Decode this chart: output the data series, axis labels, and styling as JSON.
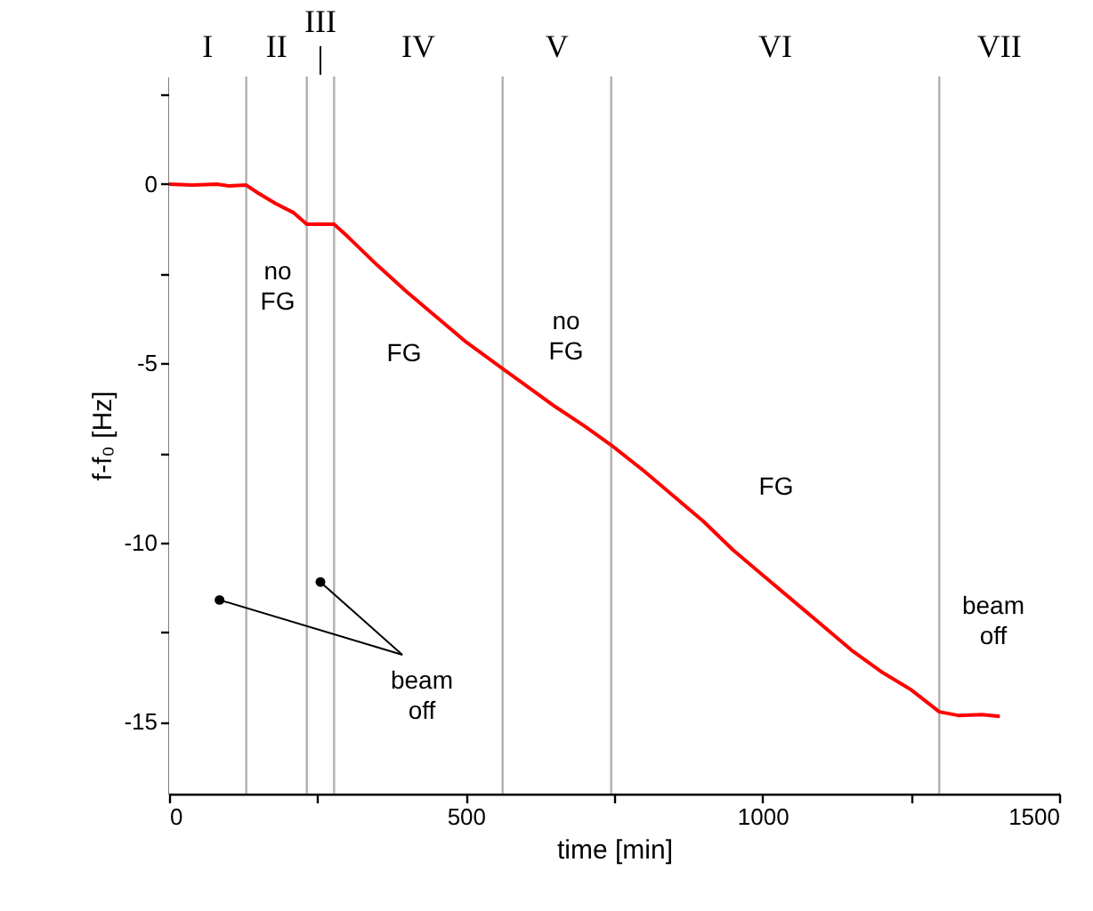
{
  "chart_data": {
    "type": "line",
    "xlabel": "time [min]",
    "ylabel": "f-f₀ [Hz]",
    "xlim": [
      0,
      1500
    ],
    "ylim": [
      -17,
      3
    ],
    "xticks": [
      0,
      {
        "value": 250,
        "label": null
      },
      500,
      {
        "value": 750,
        "label": null
      },
      1000,
      {
        "value": 1250,
        "label": null
      },
      1500
    ],
    "yticks": [
      {
        "value": 2.5,
        "label": null
      },
      0,
      {
        "value": -2.5,
        "label": null
      },
      -5,
      {
        "value": -7.5,
        "label": null
      },
      -10,
      {
        "value": -12.5,
        "label": null
      },
      -15
    ],
    "grid": false,
    "series": [
      {
        "color": "#ff0000",
        "line_style": "solid",
        "x": [
          0,
          40,
          80,
          100,
          130,
          150,
          180,
          210,
          232,
          278,
          300,
          350,
          400,
          450,
          500,
          562,
          600,
          650,
          700,
          745,
          800,
          850,
          900,
          950,
          1000,
          1050,
          1100,
          1150,
          1200,
          1250,
          1298,
          1330,
          1370,
          1400
        ],
        "values": [
          0,
          -0.03,
          0,
          -0.05,
          -0.03,
          -0.25,
          -0.55,
          -0.8,
          -1.12,
          -1.12,
          -1.45,
          -2.25,
          -3.0,
          -3.7,
          -4.4,
          -5.15,
          -5.6,
          -6.2,
          -6.75,
          -7.28,
          -8.0,
          -8.7,
          -9.4,
          -10.2,
          -10.9,
          -11.6,
          -12.3,
          -13.0,
          -13.6,
          -14.1,
          -14.72,
          -14.82,
          -14.8,
          -14.85
        ]
      },
      {
        "type": "scatter",
        "color": "#000000",
        "marker": "circle",
        "x": [
          85,
          255
        ],
        "values": [
          -11.6,
          -11.1
        ]
      }
    ],
    "ref_lines": [
      {
        "axis": "x",
        "value": 130,
        "color": "#b0b0b0"
      },
      {
        "axis": "x",
        "value": 232,
        "color": "#b0b0b0"
      },
      {
        "axis": "x",
        "value": 278,
        "color": "#b0b0b0"
      },
      {
        "axis": "x",
        "value": 562,
        "color": "#b0b0b0"
      },
      {
        "axis": "x",
        "value": 745,
        "color": "#b0b0b0"
      },
      {
        "axis": "x",
        "value": 1298,
        "color": "#b0b0b0"
      }
    ],
    "bands": [
      {
        "axis": "x",
        "from": 0,
        "to": 130,
        "label": "I",
        "color": "#ffffff"
      },
      {
        "axis": "x",
        "from": 130,
        "to": 232,
        "label": "II",
        "color": "#ffffff"
      },
      {
        "axis": "x",
        "from": 232,
        "to": 278,
        "label": "III",
        "color": "#ffffff"
      },
      {
        "axis": "x",
        "from": 278,
        "to": 562,
        "label": "IV",
        "color": "#ffffff"
      },
      {
        "axis": "x",
        "from": 562,
        "to": 745,
        "label": "V",
        "color": "#ffffff"
      },
      {
        "axis": "x",
        "from": 745,
        "to": 1298,
        "label": "VI",
        "color": "#ffffff"
      },
      {
        "axis": "x",
        "from": 1298,
        "to": 1500,
        "label": "VII",
        "color": "#ffffff"
      }
    ],
    "annotations": [
      "no FG",
      "FG",
      "no FG",
      "FG",
      "beam off",
      {
        "text": "beam off",
        "x": 85,
        "y": -11.6
      }
    ]
  }
}
